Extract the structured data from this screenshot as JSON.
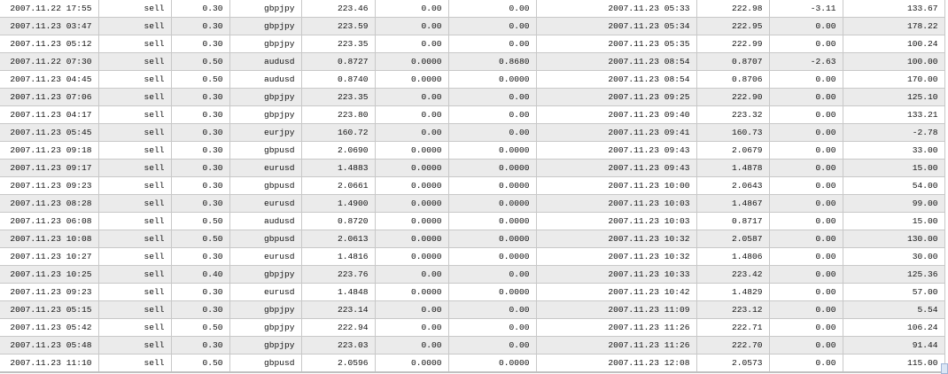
{
  "rows": [
    [
      "2007.11.22 17:55",
      "sell",
      "0.30",
      "gbpjpy",
      "223.46",
      "0.00",
      "0.00",
      "2007.11.23 05:33",
      "222.98",
      "-3.11",
      "133.67"
    ],
    [
      "2007.11.23 03:47",
      "sell",
      "0.30",
      "gbpjpy",
      "223.59",
      "0.00",
      "0.00",
      "2007.11.23 05:34",
      "222.95",
      "0.00",
      "178.22"
    ],
    [
      "2007.11.23 05:12",
      "sell",
      "0.30",
      "gbpjpy",
      "223.35",
      "0.00",
      "0.00",
      "2007.11.23 05:35",
      "222.99",
      "0.00",
      "100.24"
    ],
    [
      "2007.11.22 07:30",
      "sell",
      "0.50",
      "audusd",
      "0.8727",
      "0.0000",
      "0.8680",
      "2007.11.23 08:54",
      "0.8707",
      "-2.63",
      "100.00"
    ],
    [
      "2007.11.23 04:45",
      "sell",
      "0.50",
      "audusd",
      "0.8740",
      "0.0000",
      "0.0000",
      "2007.11.23 08:54",
      "0.8706",
      "0.00",
      "170.00"
    ],
    [
      "2007.11.23 07:06",
      "sell",
      "0.30",
      "gbpjpy",
      "223.35",
      "0.00",
      "0.00",
      "2007.11.23 09:25",
      "222.90",
      "0.00",
      "125.10"
    ],
    [
      "2007.11.23 04:17",
      "sell",
      "0.30",
      "gbpjpy",
      "223.80",
      "0.00",
      "0.00",
      "2007.11.23 09:40",
      "223.32",
      "0.00",
      "133.21"
    ],
    [
      "2007.11.23 05:45",
      "sell",
      "0.30",
      "eurjpy",
      "160.72",
      "0.00",
      "0.00",
      "2007.11.23 09:41",
      "160.73",
      "0.00",
      "-2.78"
    ],
    [
      "2007.11.23 09:18",
      "sell",
      "0.30",
      "gbpusd",
      "2.0690",
      "0.0000",
      "0.0000",
      "2007.11.23 09:43",
      "2.0679",
      "0.00",
      "33.00"
    ],
    [
      "2007.11.23 09:17",
      "sell",
      "0.30",
      "eurusd",
      "1.4883",
      "0.0000",
      "0.0000",
      "2007.11.23 09:43",
      "1.4878",
      "0.00",
      "15.00"
    ],
    [
      "2007.11.23 09:23",
      "sell",
      "0.30",
      "gbpusd",
      "2.0661",
      "0.0000",
      "0.0000",
      "2007.11.23 10:00",
      "2.0643",
      "0.00",
      "54.00"
    ],
    [
      "2007.11.23 08:28",
      "sell",
      "0.30",
      "eurusd",
      "1.4900",
      "0.0000",
      "0.0000",
      "2007.11.23 10:03",
      "1.4867",
      "0.00",
      "99.00"
    ],
    [
      "2007.11.23 06:08",
      "sell",
      "0.50",
      "audusd",
      "0.8720",
      "0.0000",
      "0.0000",
      "2007.11.23 10:03",
      "0.8717",
      "0.00",
      "15.00"
    ],
    [
      "2007.11.23 10:08",
      "sell",
      "0.50",
      "gbpusd",
      "2.0613",
      "0.0000",
      "0.0000",
      "2007.11.23 10:32",
      "2.0587",
      "0.00",
      "130.00"
    ],
    [
      "2007.11.23 10:27",
      "sell",
      "0.30",
      "eurusd",
      "1.4816",
      "0.0000",
      "0.0000",
      "2007.11.23 10:32",
      "1.4806",
      "0.00",
      "30.00"
    ],
    [
      "2007.11.23 10:25",
      "sell",
      "0.40",
      "gbpjpy",
      "223.76",
      "0.00",
      "0.00",
      "2007.11.23 10:33",
      "223.42",
      "0.00",
      "125.36"
    ],
    [
      "2007.11.23 09:23",
      "sell",
      "0.30",
      "eurusd",
      "1.4848",
      "0.0000",
      "0.0000",
      "2007.11.23 10:42",
      "1.4829",
      "0.00",
      "57.00"
    ],
    [
      "2007.11.23 05:15",
      "sell",
      "0.30",
      "gbpjpy",
      "223.14",
      "0.00",
      "0.00",
      "2007.11.23 11:09",
      "223.12",
      "0.00",
      "5.54"
    ],
    [
      "2007.11.23 05:42",
      "sell",
      "0.50",
      "gbpjpy",
      "222.94",
      "0.00",
      "0.00",
      "2007.11.23 11:26",
      "222.71",
      "0.00",
      "106.24"
    ],
    [
      "2007.11.23 05:48",
      "sell",
      "0.30",
      "gbpjpy",
      "223.03",
      "0.00",
      "0.00",
      "2007.11.23 11:26",
      "222.70",
      "0.00",
      "91.44"
    ],
    [
      "2007.11.23 11:10",
      "sell",
      "0.50",
      "gbpusd",
      "2.0596",
      "0.0000",
      "0.0000",
      "2007.11.23 12:08",
      "2.0573",
      "0.00",
      "115.00"
    ]
  ]
}
